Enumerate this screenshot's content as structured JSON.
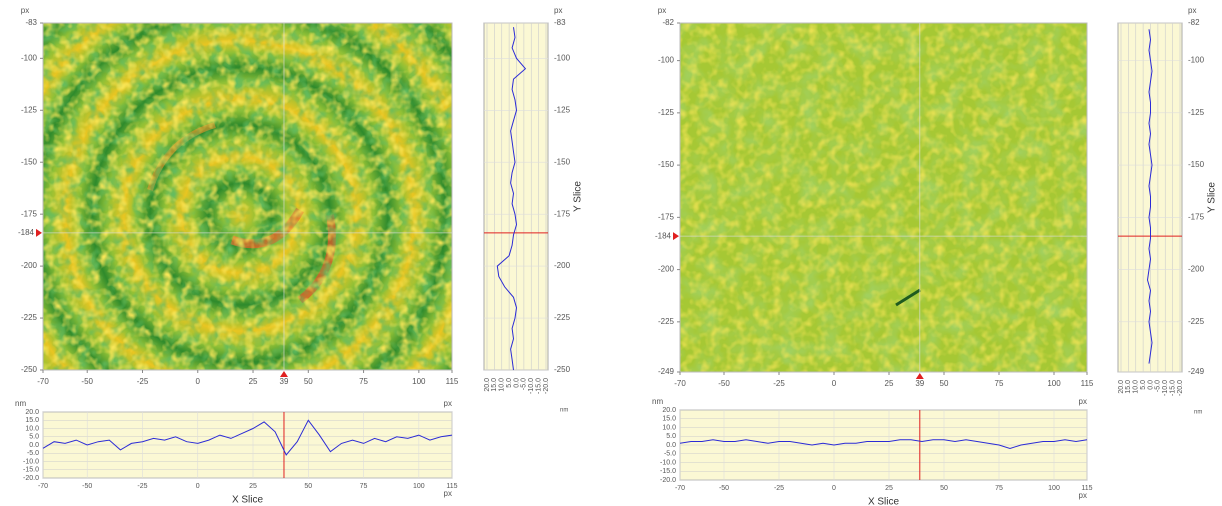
{
  "chart_data": [
    {
      "type": "heatmap_slices",
      "image": {
        "y_unit": "px",
        "xlim": [
          -70,
          115
        ],
        "xticks": [
          -70,
          -50,
          -25,
          0,
          25,
          50,
          75,
          100,
          115
        ],
        "ylim": [
          -250,
          -83
        ],
        "yticks": [
          -83,
          -100,
          -125,
          -150,
          -175,
          -200,
          -225,
          -250
        ],
        "cursor": {
          "x": 39,
          "y": -184
        },
        "cursor_color": "#e02020"
      },
      "x_slice": {
        "title": "X Slice",
        "x_unit": "px",
        "y_unit": "nm",
        "color": "#2b2bd6",
        "background": "#fbf8d4",
        "xlim": [
          -70,
          115
        ],
        "xticks": [
          -70,
          -50,
          -25,
          0,
          25,
          50,
          75,
          100,
          115
        ],
        "ylim": [
          -20,
          20
        ],
        "yticks": [
          {
            "value": 20,
            "label": "20.0"
          },
          {
            "value": 15,
            "label": "15.0"
          },
          {
            "value": 10,
            "label": "10.0"
          },
          {
            "value": 5,
            "label": "5.0"
          },
          {
            "value": 0,
            "label": "0.0"
          },
          {
            "value": -5,
            "label": "-5.0"
          },
          {
            "value": -10,
            "label": "-10.0"
          },
          {
            "value": -15,
            "label": "-15.0"
          },
          {
            "value": -20,
            "label": "-20.0"
          }
        ],
        "x": [
          -70,
          -65,
          -60,
          -55,
          -50,
          -45,
          -40,
          -35,
          -30,
          -25,
          -20,
          -15,
          -10,
          -5,
          0,
          5,
          10,
          15,
          20,
          25,
          30,
          35,
          40,
          45,
          50,
          55,
          60,
          65,
          70,
          75,
          80,
          85,
          90,
          95,
          100,
          105,
          110,
          115
        ],
        "values": [
          -2,
          2,
          1,
          3,
          0,
          2,
          3,
          -3,
          1,
          2,
          4,
          3,
          5,
          2,
          1,
          3,
          6,
          4,
          7,
          10,
          14,
          8,
          -6,
          2,
          15,
          6,
          -4,
          1,
          3,
          1,
          4,
          2,
          5,
          4,
          6,
          3,
          5,
          6
        ]
      },
      "y_slice": {
        "title": "Y Slice",
        "y_unit": "px",
        "x_unit": "nm",
        "color": "#2b2bd6",
        "background": "#fbf8d4",
        "ylim": [
          -250,
          -83
        ],
        "yticks": [
          -83,
          -100,
          -125,
          -150,
          -175,
          -200,
          -225,
          -250
        ],
        "xlim": [
          20,
          -20
        ],
        "xticks": [
          {
            "value": 20,
            "label": "20.0"
          },
          {
            "value": 15,
            "label": "15.0"
          },
          {
            "value": 10,
            "label": "10.0"
          },
          {
            "value": 5,
            "label": "5.0"
          },
          {
            "value": 0,
            "label": "0.0"
          },
          {
            "value": -5,
            "label": "-5.0"
          },
          {
            "value": -10,
            "label": "-10.0"
          },
          {
            "value": -15,
            "label": "-15.0"
          },
          {
            "value": -20,
            "label": "-20.0"
          }
        ],
        "y": [
          -85,
          -90,
          -95,
          -100,
          -105,
          -110,
          -115,
          -120,
          -125,
          -130,
          -135,
          -140,
          -145,
          -150,
          -155,
          -160,
          -165,
          -170,
          -175,
          -180,
          -185,
          -190,
          -195,
          -200,
          -205,
          -210,
          -215,
          -220,
          -225,
          -230,
          -235,
          -240,
          -245,
          -250
        ],
        "values": [
          2,
          1,
          3,
          0,
          -6,
          2,
          3,
          1,
          0,
          2,
          4,
          3,
          2,
          1,
          3,
          4,
          2,
          3,
          1,
          0,
          2,
          3,
          5,
          13,
          12,
          8,
          2,
          0,
          1,
          3,
          2,
          4,
          3,
          2
        ]
      }
    },
    {
      "type": "heatmap_slices",
      "image": {
        "y_unit": "px",
        "xlim": [
          -70,
          115
        ],
        "xticks": [
          -70,
          -50,
          -25,
          0,
          25,
          50,
          75,
          100,
          115
        ],
        "ylim": [
          -249,
          -82
        ],
        "yticks": [
          -82,
          -100,
          -125,
          -150,
          -175,
          -200,
          -225,
          -249
        ],
        "cursor": {
          "x": 39,
          "y": -184
        },
        "cursor_color": "#e02020"
      },
      "x_slice": {
        "title": "X Slice",
        "x_unit": "px",
        "y_unit": "nm",
        "color": "#2b2bd6",
        "background": "#fbf8d4",
        "xlim": [
          -70,
          115
        ],
        "xticks": [
          -70,
          -50,
          -25,
          0,
          25,
          50,
          75,
          100,
          115
        ],
        "ylim": [
          -20,
          20
        ],
        "yticks": [
          {
            "value": 20,
            "label": "20.0"
          },
          {
            "value": 15,
            "label": "15.0"
          },
          {
            "value": 10,
            "label": "10.0"
          },
          {
            "value": 5,
            "label": "5.0"
          },
          {
            "value": 0,
            "label": "0.0"
          },
          {
            "value": -5,
            "label": "-5.0"
          },
          {
            "value": -10,
            "label": "-10.0"
          },
          {
            "value": -15,
            "label": "-15.0"
          },
          {
            "value": -20,
            "label": "-20.0"
          }
        ],
        "x": [
          -70,
          -65,
          -60,
          -55,
          -50,
          -45,
          -40,
          -35,
          -30,
          -25,
          -20,
          -15,
          -10,
          -5,
          0,
          5,
          10,
          15,
          20,
          25,
          30,
          35,
          40,
          45,
          50,
          55,
          60,
          65,
          70,
          75,
          80,
          85,
          90,
          95,
          100,
          105,
          110,
          115
        ],
        "values": [
          1,
          2,
          2,
          3,
          2,
          2,
          3,
          2,
          1,
          2,
          2,
          1,
          0,
          1,
          0,
          1,
          1,
          2,
          2,
          2,
          3,
          3,
          2,
          3,
          3,
          2,
          3,
          2,
          1,
          0,
          -2,
          0,
          1,
          2,
          2,
          3,
          2,
          3
        ]
      },
      "y_slice": {
        "title": "Y Slice",
        "y_unit": "px",
        "x_unit": "nm",
        "color": "#2b2bd6",
        "background": "#fbf8d4",
        "ylim": [
          -249,
          -82
        ],
        "yticks": [
          -82,
          -100,
          -125,
          -150,
          -175,
          -200,
          -225,
          -249
        ],
        "xlim": [
          20,
          -20
        ],
        "xticks": [
          {
            "value": 20,
            "label": "20.0"
          },
          {
            "value": 15,
            "label": "15.0"
          },
          {
            "value": 10,
            "label": "10.0"
          },
          {
            "value": 5,
            "label": "5.0"
          },
          {
            "value": 0,
            "label": "0.0"
          },
          {
            "value": -5,
            "label": "-5.0"
          },
          {
            "value": -10,
            "label": "-10.0"
          },
          {
            "value": -15,
            "label": "-15.0"
          },
          {
            "value": -20,
            "label": "-20.0"
          }
        ],
        "y": [
          -85,
          -90,
          -95,
          -100,
          -105,
          -110,
          -115,
          -120,
          -125,
          -130,
          -135,
          -140,
          -145,
          -150,
          -155,
          -160,
          -165,
          -170,
          -175,
          -180,
          -185,
          -190,
          -195,
          -200,
          -205,
          -210,
          -215,
          -220,
          -225,
          -230,
          -235,
          -240,
          -245
        ],
        "values": [
          1,
          0,
          1,
          0,
          -1,
          0,
          1,
          0,
          0,
          1,
          0,
          1,
          0,
          -1,
          0,
          1,
          0,
          0,
          1,
          0,
          0,
          1,
          0,
          1,
          2,
          0,
          1,
          0,
          1,
          0,
          -1,
          0,
          1
        ]
      }
    }
  ]
}
